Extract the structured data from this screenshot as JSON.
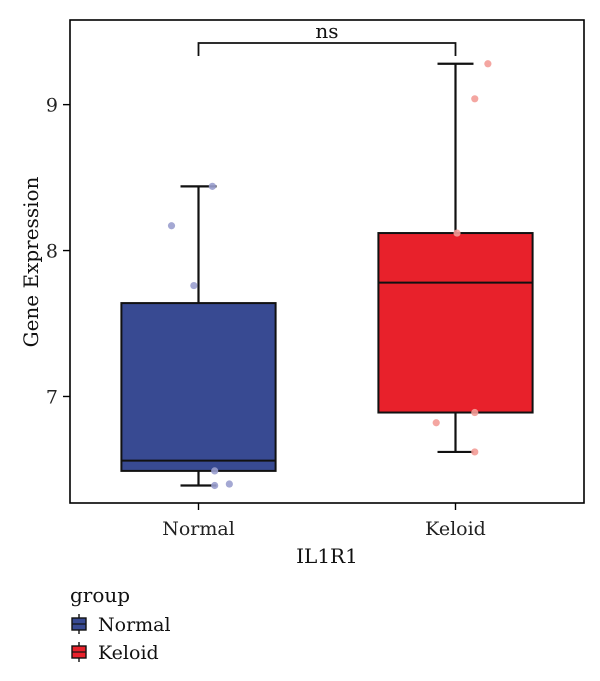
{
  "chart_data": {
    "type": "box",
    "title": "",
    "xlabel": "IL1R1",
    "ylabel": "Gene Expression",
    "ylim": [
      6.27,
      9.58
    ],
    "yticks": [
      7,
      8,
      9
    ],
    "grid": false,
    "categories": [
      "Normal",
      "Keloid"
    ],
    "series": [
      {
        "name": "Normal",
        "color": "#384A92",
        "point_color": "#9A9FCE",
        "min": 6.39,
        "q1": 6.49,
        "median": 6.56,
        "q3": 7.64,
        "max": 8.44,
        "points": [
          {
            "x_offset": -0.35,
            "y": 8.17
          },
          {
            "x_offset": -0.06,
            "y": 7.76
          },
          {
            "x_offset": 0.18,
            "y": 8.44
          },
          {
            "x_offset": 0.21,
            "y": 6.39
          },
          {
            "x_offset": 0.21,
            "y": 6.49
          },
          {
            "x_offset": 0.4,
            "y": 6.4
          }
        ]
      },
      {
        "name": "Keloid",
        "color": "#E8212B",
        "point_color": "#F39C97",
        "min": 6.62,
        "q1": 6.89,
        "median": 7.78,
        "q3": 8.12,
        "max": 9.28,
        "points": [
          {
            "x_offset": -0.25,
            "y": 6.82
          },
          {
            "x_offset": 0.02,
            "y": 8.12
          },
          {
            "x_offset": 0.25,
            "y": 6.89
          },
          {
            "x_offset": 0.25,
            "y": 6.62
          },
          {
            "x_offset": 0.25,
            "y": 9.04
          },
          {
            "x_offset": 0.42,
            "y": 9.28
          }
        ]
      }
    ],
    "annotations": [
      {
        "type": "significance_bracket",
        "from": "Normal",
        "to": "Keloid",
        "label": "ns"
      }
    ],
    "legend": {
      "title": "group",
      "position": "bottom-left",
      "items": [
        "Normal",
        "Keloid"
      ]
    }
  }
}
